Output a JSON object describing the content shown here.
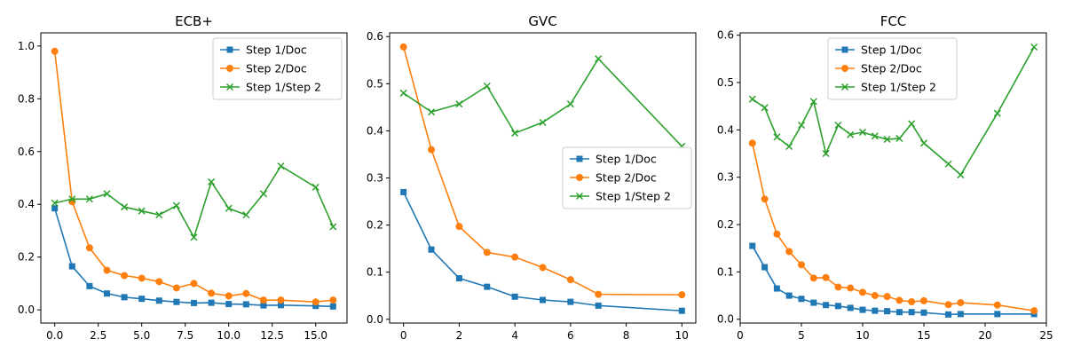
{
  "colors": {
    "blue": "#1f77b4",
    "orange": "#ff7f0e",
    "green": "#2ca02c"
  },
  "chart_data": [
    {
      "type": "line",
      "title": "ECB+",
      "xlabel": "",
      "ylabel": "",
      "xlim": [
        -0.8,
        16.8
      ],
      "ylim": [
        -0.05,
        1.05
      ],
      "xticks": [
        0,
        2.5,
        5,
        7.5,
        10,
        12.5,
        15
      ],
      "xtick_labels": [
        "0.0",
        "2.5",
        "5.0",
        "7.5",
        "10.0",
        "12.5",
        "15.0"
      ],
      "yticks": [
        0,
        0.2,
        0.4,
        0.6,
        0.8,
        1.0
      ],
      "ytick_labels": [
        "0.0",
        "0.2",
        "0.4",
        "0.6",
        "0.8",
        "1.0"
      ],
      "legend_position": "top-right",
      "series": [
        {
          "name": "Step 1/Doc",
          "color": "#1f77b4",
          "marker": "square",
          "x": [
            0,
            1,
            2,
            3,
            4,
            5,
            6,
            7,
            8,
            9,
            10,
            11,
            12,
            13,
            15,
            16
          ],
          "y": [
            0.385,
            0.165,
            0.09,
            0.062,
            0.048,
            0.042,
            0.035,
            0.03,
            0.026,
            0.027,
            0.022,
            0.021,
            0.017,
            0.018,
            0.015,
            0.013
          ]
        },
        {
          "name": "Step 2/Doc",
          "color": "#ff7f0e",
          "marker": "circle",
          "x": [
            0,
            1,
            2,
            3,
            4,
            5,
            6,
            7,
            8,
            9,
            10,
            11,
            12,
            13,
            15,
            16
          ],
          "y": [
            0.98,
            0.41,
            0.235,
            0.15,
            0.13,
            0.12,
            0.107,
            0.083,
            0.1,
            0.063,
            0.053,
            0.062,
            0.037,
            0.037,
            0.03,
            0.037
          ]
        },
        {
          "name": "Step 1/Step 2",
          "color": "#2ca02c",
          "marker": "x",
          "x": [
            0,
            1,
            2,
            3,
            4,
            5,
            6,
            7,
            8,
            9,
            10,
            11,
            12,
            13,
            15,
            16
          ],
          "y": [
            0.405,
            0.42,
            0.42,
            0.44,
            0.39,
            0.375,
            0.36,
            0.395,
            0.275,
            0.485,
            0.385,
            0.36,
            0.44,
            0.545,
            0.465,
            0.315
          ]
        }
      ]
    },
    {
      "type": "line",
      "title": "GVC",
      "xlabel": "",
      "ylabel": "",
      "xlim": [
        -0.5,
        10.5
      ],
      "ylim": [
        -0.008,
        0.608
      ],
      "xticks": [
        0,
        2,
        4,
        6,
        8,
        10
      ],
      "xtick_labels": [
        "0",
        "2",
        "4",
        "6",
        "8",
        "10"
      ],
      "yticks": [
        0,
        0.1,
        0.2,
        0.3,
        0.4,
        0.5,
        0.6
      ],
      "ytick_labels": [
        "0.0",
        "0.1",
        "0.2",
        "0.3",
        "0.4",
        "0.5",
        "0.6"
      ],
      "legend_position": "center-right",
      "series": [
        {
          "name": "Step 1/Doc",
          "color": "#1f77b4",
          "marker": "square",
          "x": [
            0,
            1,
            2,
            3,
            4,
            5,
            6,
            7,
            10
          ],
          "y": [
            0.27,
            0.148,
            0.087,
            0.069,
            0.048,
            0.041,
            0.037,
            0.029,
            0.018
          ]
        },
        {
          "name": "Step 2/Doc",
          "color": "#ff7f0e",
          "marker": "circle",
          "x": [
            0,
            1,
            2,
            3,
            4,
            5,
            6,
            7,
            10
          ],
          "y": [
            0.578,
            0.36,
            0.197,
            0.142,
            0.132,
            0.11,
            0.084,
            0.053,
            0.052
          ]
        },
        {
          "name": "Step 1/Step 2",
          "color": "#2ca02c",
          "marker": "x",
          "x": [
            0,
            1,
            2,
            3,
            4,
            5,
            6,
            7,
            10
          ],
          "y": [
            0.48,
            0.44,
            0.457,
            0.495,
            0.395,
            0.418,
            0.457,
            0.553,
            0.367
          ]
        }
      ]
    },
    {
      "type": "line",
      "title": "FCC",
      "xlabel": "",
      "ylabel": "",
      "xlim": [
        0,
        25
      ],
      "ylim": [
        -0.008,
        0.605
      ],
      "xticks": [
        0,
        5,
        10,
        15,
        20,
        25
      ],
      "xtick_labels": [
        "0",
        "5",
        "10",
        "15",
        "20",
        "25"
      ],
      "yticks": [
        0,
        0.1,
        0.2,
        0.3,
        0.4,
        0.5,
        0.6
      ],
      "ytick_labels": [
        "0.0",
        "0.1",
        "0.2",
        "0.3",
        "0.4",
        "0.5",
        "0.6"
      ],
      "legend_position": "top-center",
      "series": [
        {
          "name": "Step 1/Doc",
          "color": "#1f77b4",
          "marker": "square",
          "x": [
            1,
            2,
            3,
            4,
            5,
            6,
            7,
            8,
            9,
            10,
            11,
            12,
            13,
            14,
            15,
            17,
            18,
            21,
            24
          ],
          "y": [
            0.155,
            0.11,
            0.065,
            0.05,
            0.043,
            0.035,
            0.03,
            0.028,
            0.024,
            0.02,
            0.018,
            0.017,
            0.015,
            0.015,
            0.014,
            0.01,
            0.011,
            0.011,
            0.011
          ]
        },
        {
          "name": "Step 2/Doc",
          "color": "#ff7f0e",
          "marker": "circle",
          "x": [
            1,
            2,
            3,
            4,
            5,
            6,
            7,
            8,
            9,
            10,
            11,
            12,
            13,
            14,
            15,
            17,
            18,
            21,
            24
          ],
          "y": [
            0.372,
            0.254,
            0.18,
            0.143,
            0.115,
            0.087,
            0.088,
            0.068,
            0.066,
            0.057,
            0.05,
            0.048,
            0.04,
            0.037,
            0.039,
            0.031,
            0.035,
            0.03,
            0.018
          ]
        },
        {
          "name": "Step 1/Step 2",
          "color": "#2ca02c",
          "marker": "x",
          "x": [
            1,
            2,
            3,
            4,
            5,
            6,
            7,
            8,
            9,
            10,
            11,
            12,
            13,
            14,
            15,
            17,
            18,
            21,
            24
          ],
          "y": [
            0.465,
            0.447,
            0.385,
            0.365,
            0.41,
            0.46,
            0.35,
            0.41,
            0.39,
            0.395,
            0.387,
            0.38,
            0.382,
            0.413,
            0.372,
            0.328,
            0.305,
            0.435,
            0.575
          ]
        }
      ]
    }
  ]
}
